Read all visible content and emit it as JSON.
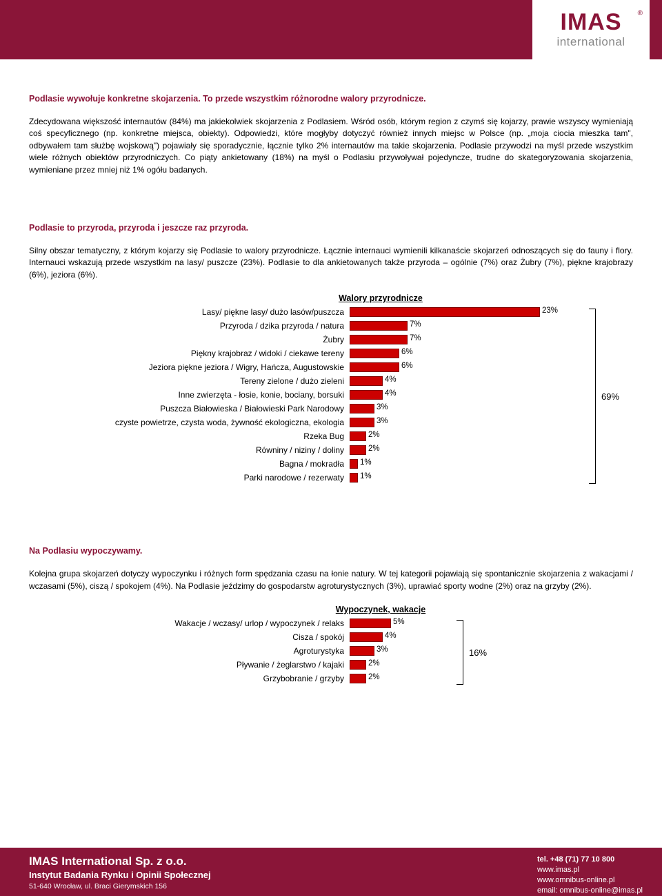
{
  "logo": {
    "main": "IMAS",
    "reg": "®",
    "sub": "international"
  },
  "s1": {
    "title": "Podlasie wywołuje konkretne skojarzenia. To przede wszystkim różnorodne walory przyrodnicze.",
    "p": "Zdecydowana większość internautów (84%) ma jakiekolwiek skojarzenia z Podlasiem. Wśród osób, którym region z czymś się kojarzy, prawie wszyscy wymieniają coś specyficznego (np. konkretne miejsca, obiekty). Odpowiedzi, które mogłyby dotyczyć również innych miejsc w Polsce (np. „moja ciocia mieszka tam\", odbywałem tam służbę wojskową\") pojawiały się sporadycznie, łącznie tylko 2% internautów ma takie skojarzenia. Podlasie przywodzi na myśl przede wszystkim wiele różnych obiektów przyrodniczych. Co piąty ankietowany (18%) na myśl o Podlasiu przywoływał pojedyncze, trudne do skategoryzowania skojarzenia, wymieniane przez mniej niż 1% ogółu badanych."
  },
  "s2": {
    "title": "Podlasie to przyroda, przyroda i jeszcze raz przyroda.",
    "p": "Silny obszar tematyczny, z którym kojarzy się Podlasie to walory przyrodnicze. Łącznie internauci wymienili kilkanaście skojarzeń odnoszących się do fauny i flory. Internauci wskazują przede wszystkim na lasy/ puszcze (23%). Podlasie to dla ankietowanych także przyroda – ogólnie (7%) oraz Żubry (7%), piękne krajobrazy (6%), jeziora (6%)."
  },
  "chart1": {
    "title": "Walory przyrodnicze",
    "scale_max": 25,
    "bar_color": "#cc0000",
    "total": "69%",
    "rows": [
      {
        "label": "Lasy/ piękne lasy/ dużo lasów/puszcza",
        "value": 23,
        "txt": "23%"
      },
      {
        "label": "Przyroda / dzika przyroda / natura",
        "value": 7,
        "txt": "7%"
      },
      {
        "label": "Żubry",
        "value": 7,
        "txt": "7%"
      },
      {
        "label": "Piękny krajobraz / widoki / ciekawe tereny",
        "value": 6,
        "txt": "6%"
      },
      {
        "label": "Jeziora piękne jeziora / Wigry, Hańcza, Augustowskie",
        "value": 6,
        "txt": "6%"
      },
      {
        "label": "Tereny zielone / dużo zieleni",
        "value": 4,
        "txt": "4%"
      },
      {
        "label": "Inne zwierzęta - łosie, konie, bociany, borsuki",
        "value": 4,
        "txt": "4%"
      },
      {
        "label": "Puszcza Białowieska / Białowieski Park Narodowy",
        "value": 3,
        "txt": "3%"
      },
      {
        "label": "czyste powietrze, czysta woda, żywność ekologiczna, ekologia",
        "value": 3,
        "txt": "3%"
      },
      {
        "label": "Rzeka Bug",
        "value": 2,
        "txt": "2%"
      },
      {
        "label": "Równiny / niziny / doliny",
        "value": 2,
        "txt": "2%"
      },
      {
        "label": "Bagna / mokradła",
        "value": 1,
        "txt": "1%"
      },
      {
        "label": "Parki narodowe / rezerwaty",
        "value": 1,
        "txt": "1%"
      }
    ]
  },
  "s3": {
    "title": "Na Podlasiu wypoczywamy.",
    "p": "Kolejna grupa skojarzeń dotyczy wypoczynku i różnych form spędzania czasu na łonie natury. W tej kategorii pojawiają się spontanicznie skojarzenia z wakacjami / wczasami (5%), ciszą / spokojem (4%). Na Podlasie jeździmy do gospodarstw agroturystycznych (3%), uprawiać sporty wodne (2%) oraz na grzyby (2%)."
  },
  "chart2": {
    "title": "Wypoczynek, wakacje",
    "scale_max": 25,
    "total": "16%",
    "rows": [
      {
        "label": "Wakacje / wczasy/ urlop / wypoczynek / relaks",
        "value": 5,
        "txt": "5%"
      },
      {
        "label": "Cisza / spokój",
        "value": 4,
        "txt": "4%"
      },
      {
        "label": "Agroturystyka",
        "value": 3,
        "txt": "3%"
      },
      {
        "label": "Pływanie / żeglarstwo / kajaki",
        "value": 2,
        "txt": "2%"
      },
      {
        "label": "Grzybobranie / grzyby",
        "value": 2,
        "txt": "2%"
      }
    ]
  },
  "footer": {
    "company": "IMAS International Sp. z o.o.",
    "inst": "Instytut Badania Rynku i Opinii Społecznej",
    "addr": "51-640 Wrocław, ul. Braci Gierymskich 156",
    "tel": "tel. +48 (71) 77 10 800",
    "w1": "www.imas.pl",
    "w2": "www.omnibus-online.pl",
    "email": "email: omnibus-online@imas.pl"
  }
}
